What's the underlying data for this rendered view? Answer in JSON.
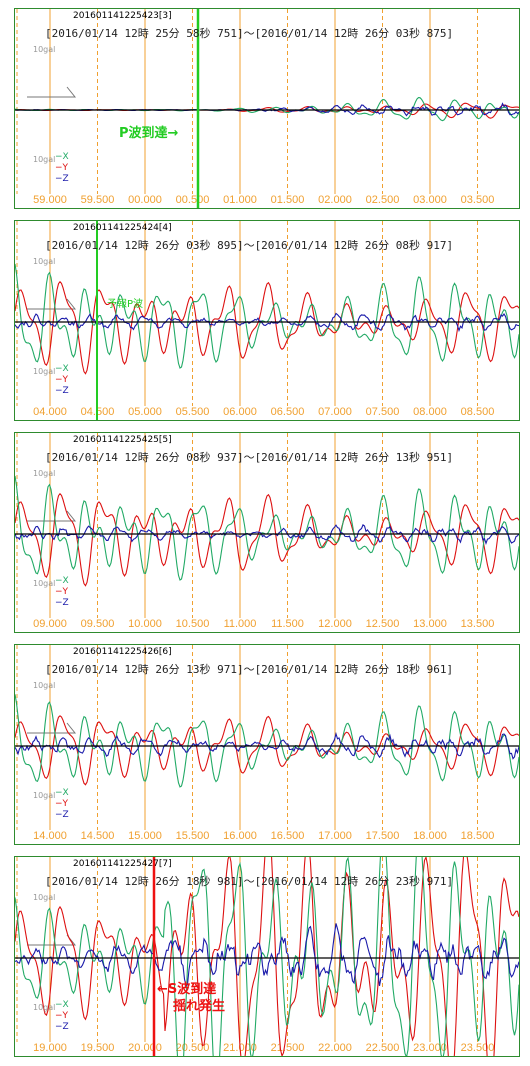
{
  "legend": {
    "x": "−X",
    "y": "−Y",
    "z": "−Z",
    "scale_label": "10gal"
  },
  "colors": {
    "x": "#22aa66",
    "y": "#dd1111",
    "z": "#1a1aaa",
    "tick": "#f0a030",
    "baseline": "#000000",
    "border": "#2e8b2e"
  },
  "panels": [
    {
      "id": "201601141225423",
      "id_suffix": "[3]",
      "range": "[2016/01/14 12時 25分 58秒 751]～[2016/01/14 12時 26分 03秒 875]",
      "tick_labels": [
        "59.000",
        "59.500",
        "00.000",
        "00.500",
        "01.000",
        "01.500",
        "02.000",
        "02.500",
        "03.000",
        "03.500"
      ]
    },
    {
      "id": "201601141225424",
      "id_suffix": "[4]",
      "range": "[2016/01/14 12時 26分 03秒 895]～[2016/01/14 12時 26分 08秒 917]",
      "tick_labels": [
        "04.000",
        "04.500",
        "05.000",
        "05.500",
        "06.000",
        "06.500",
        "07.000",
        "07.500",
        "08.000",
        "08.500"
      ]
    },
    {
      "id": "201601141225425",
      "id_suffix": "[5]",
      "range": "[2016/01/14 12時 26分 08秒 937]～[2016/01/14 12時 26分 13秒 951]",
      "tick_labels": [
        "09.000",
        "09.500",
        "10.000",
        "10.500",
        "11.000",
        "11.500",
        "12.000",
        "12.500",
        "13.000",
        "13.500"
      ]
    },
    {
      "id": "201601141225426",
      "id_suffix": "[6]",
      "range": "[2016/01/14 12時 26分 13秒 971]～[2016/01/14 12時 26分 18秒 961]",
      "tick_labels": [
        "14.000",
        "14.500",
        "15.000",
        "15.500",
        "16.000",
        "16.500",
        "17.000",
        "17.500",
        "18.000",
        "18.500"
      ]
    },
    {
      "id": "201601141225427",
      "id_suffix": "[7]",
      "range": "[2016/01/14 12時 26分 18秒 981]～[2016/01/14 12時 26分 23秒 971]",
      "tick_labels": [
        "19.000",
        "19.500",
        "20.000",
        "20.500",
        "21.000",
        "21.500",
        "22.000",
        "22.500",
        "23.000",
        "23.500"
      ]
    }
  ],
  "annotations": {
    "p_wave": "P波到達→",
    "p_wave_note": "予報P波",
    "s_wave_line1": "←S波到達",
    "s_wave_line2": "揺れ発生"
  },
  "chart_data": {
    "type": "line",
    "channels": [
      "X",
      "Y",
      "Z"
    ],
    "scale_gal": 10,
    "panels": [
      {
        "start": "2016/01/14 12:25:58.751",
        "end": "2016/01/14 12:26:03.875",
        "first_tick_s": 59.0,
        "tick_step_s": 0.5,
        "peak_amplitude": {
          "X": 2,
          "Y": 1.2,
          "Z": 1
        },
        "events": [
          {
            "label": "P波到達",
            "time_s": "00.450"
          }
        ]
      },
      {
        "start": "2016/01/14 12:26:03.895",
        "end": "2016/01/14 12:26:08.917",
        "first_tick_s": 4.0,
        "tick_step_s": 0.5,
        "peak_amplitude": {
          "X": 9,
          "Y": 8,
          "Z": 1.5
        },
        "events": [
          {
            "label": "予報P波",
            "time_s": "04.600"
          }
        ]
      },
      {
        "start": "2016/01/14 12:26:08.937",
        "end": "2016/01/14 12:26:13.951",
        "first_tick_s": 9.0,
        "tick_step_s": 0.5,
        "peak_amplitude": {
          "X": 9,
          "Y": 8,
          "Z": 1.5
        },
        "events": []
      },
      {
        "start": "2016/01/14 12:26:13.971",
        "end": "2016/01/14 12:26:18.961",
        "first_tick_s": 14.0,
        "tick_step_s": 0.5,
        "peak_amplitude": {
          "X": 8,
          "Y": 6,
          "Z": 2
        },
        "events": []
      },
      {
        "start": "2016/01/14 12:26:18.981",
        "end": "2016/01/14 12:26:23.971",
        "first_tick_s": 19.0,
        "tick_step_s": 0.5,
        "peak_amplitude": {
          "X": 12,
          "Y": 12,
          "Z": 4
        },
        "events": [
          {
            "label": "S波到達 揺れ発生",
            "time_s": "20.050"
          }
        ]
      }
    ]
  }
}
